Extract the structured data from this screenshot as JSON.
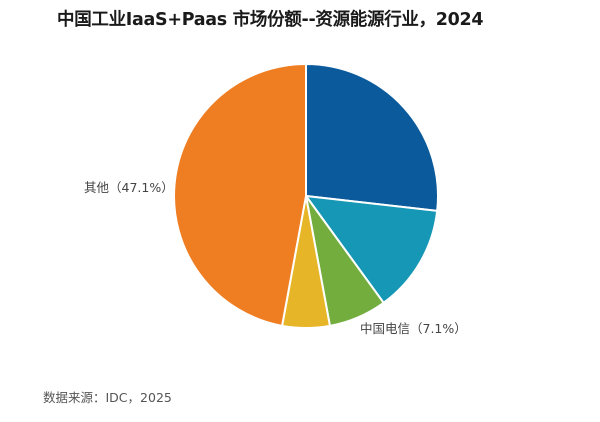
{
  "chart_data": {
    "type": "pie",
    "title": "中国工业IaaS+Paas 市场份额--资源能源行业，2024",
    "source": "数据来源：IDC，2025",
    "start_angle_deg": 0,
    "direction": "clockwise",
    "slices": [
      {
        "name": "",
        "value": 26.8,
        "color": "#0a5a9c",
        "label": ""
      },
      {
        "name": "",
        "value": 13.2,
        "color": "#1597b5",
        "label": ""
      },
      {
        "name": "中国电信",
        "value": 7.1,
        "color": "#72ad3e",
        "label": "中国电信（7.1%）"
      },
      {
        "name": "",
        "value": 5.8,
        "color": "#e7b628",
        "label": ""
      },
      {
        "name": "其他",
        "value": 47.1,
        "color": "#ef7d22",
        "label": "其他（47.1%）"
      }
    ]
  },
  "labels": {
    "other": "其他（47.1%）",
    "telecom": "中国电信（7.1%）"
  }
}
